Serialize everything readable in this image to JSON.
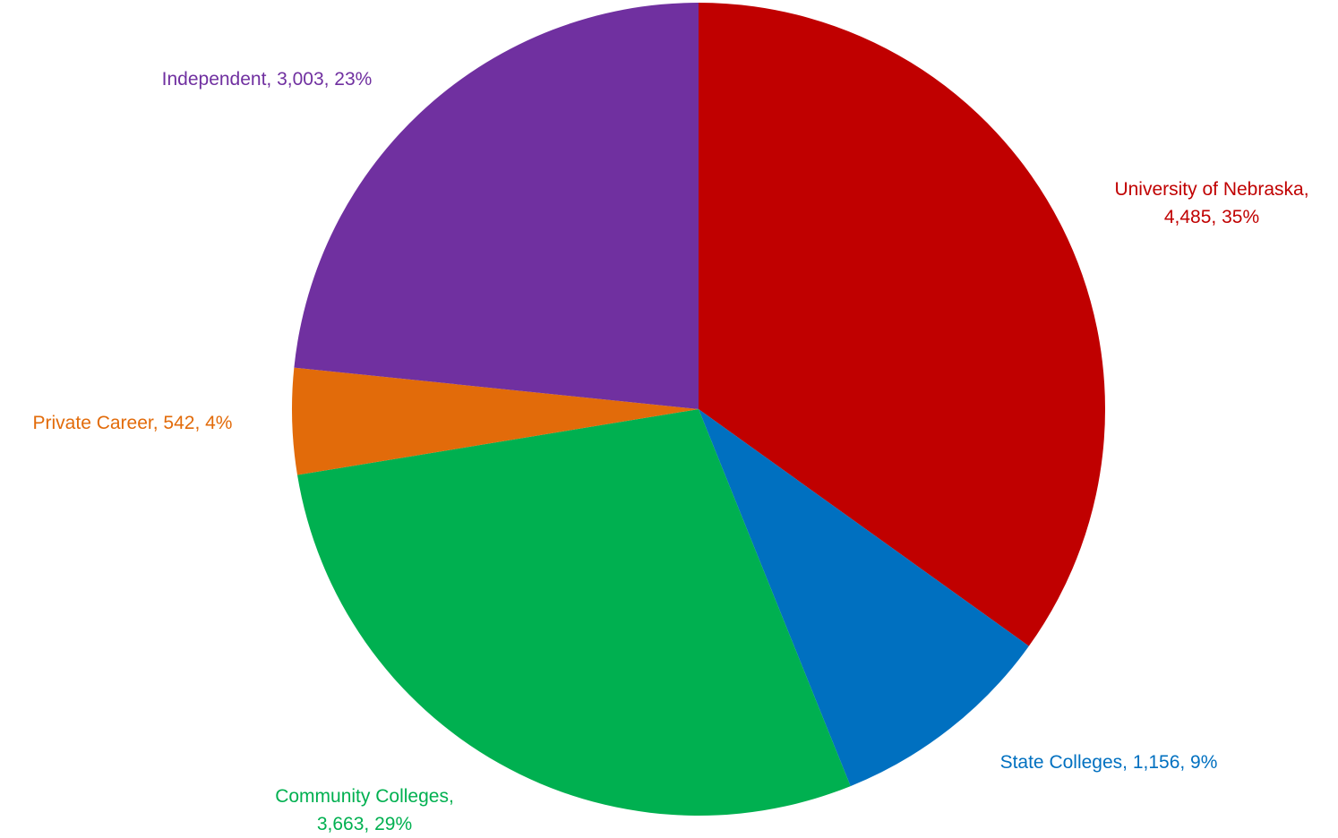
{
  "chart_data": {
    "type": "pie",
    "start_angle_deg": 0,
    "direction": "clockwise",
    "slices": [
      {
        "category": "University of Nebraska",
        "value": 4485,
        "percent": "35%",
        "color": "#C00000",
        "label_lines": [
          "University of Nebraska,",
          "4,485, 35%"
        ]
      },
      {
        "category": "State Colleges",
        "value": 1156,
        "percent": "9%",
        "color": "#0070C0",
        "label_lines": [
          "State Colleges, 1,156, 9%"
        ]
      },
      {
        "category": "Community Colleges",
        "value": 3663,
        "percent": "29%",
        "color": "#00B050",
        "label_lines": [
          "Community Colleges,",
          "3,663, 29%"
        ]
      },
      {
        "category": "Private Career",
        "value": 542,
        "percent": "4%",
        "color": "#E26B0A",
        "label_lines": [
          "Private Career, 542, 4%"
        ]
      },
      {
        "category": "Independent",
        "value": 3003,
        "percent": "23%",
        "color": "#7030A0",
        "label_lines": [
          "Independent, 3,003, 23%"
        ]
      }
    ]
  }
}
